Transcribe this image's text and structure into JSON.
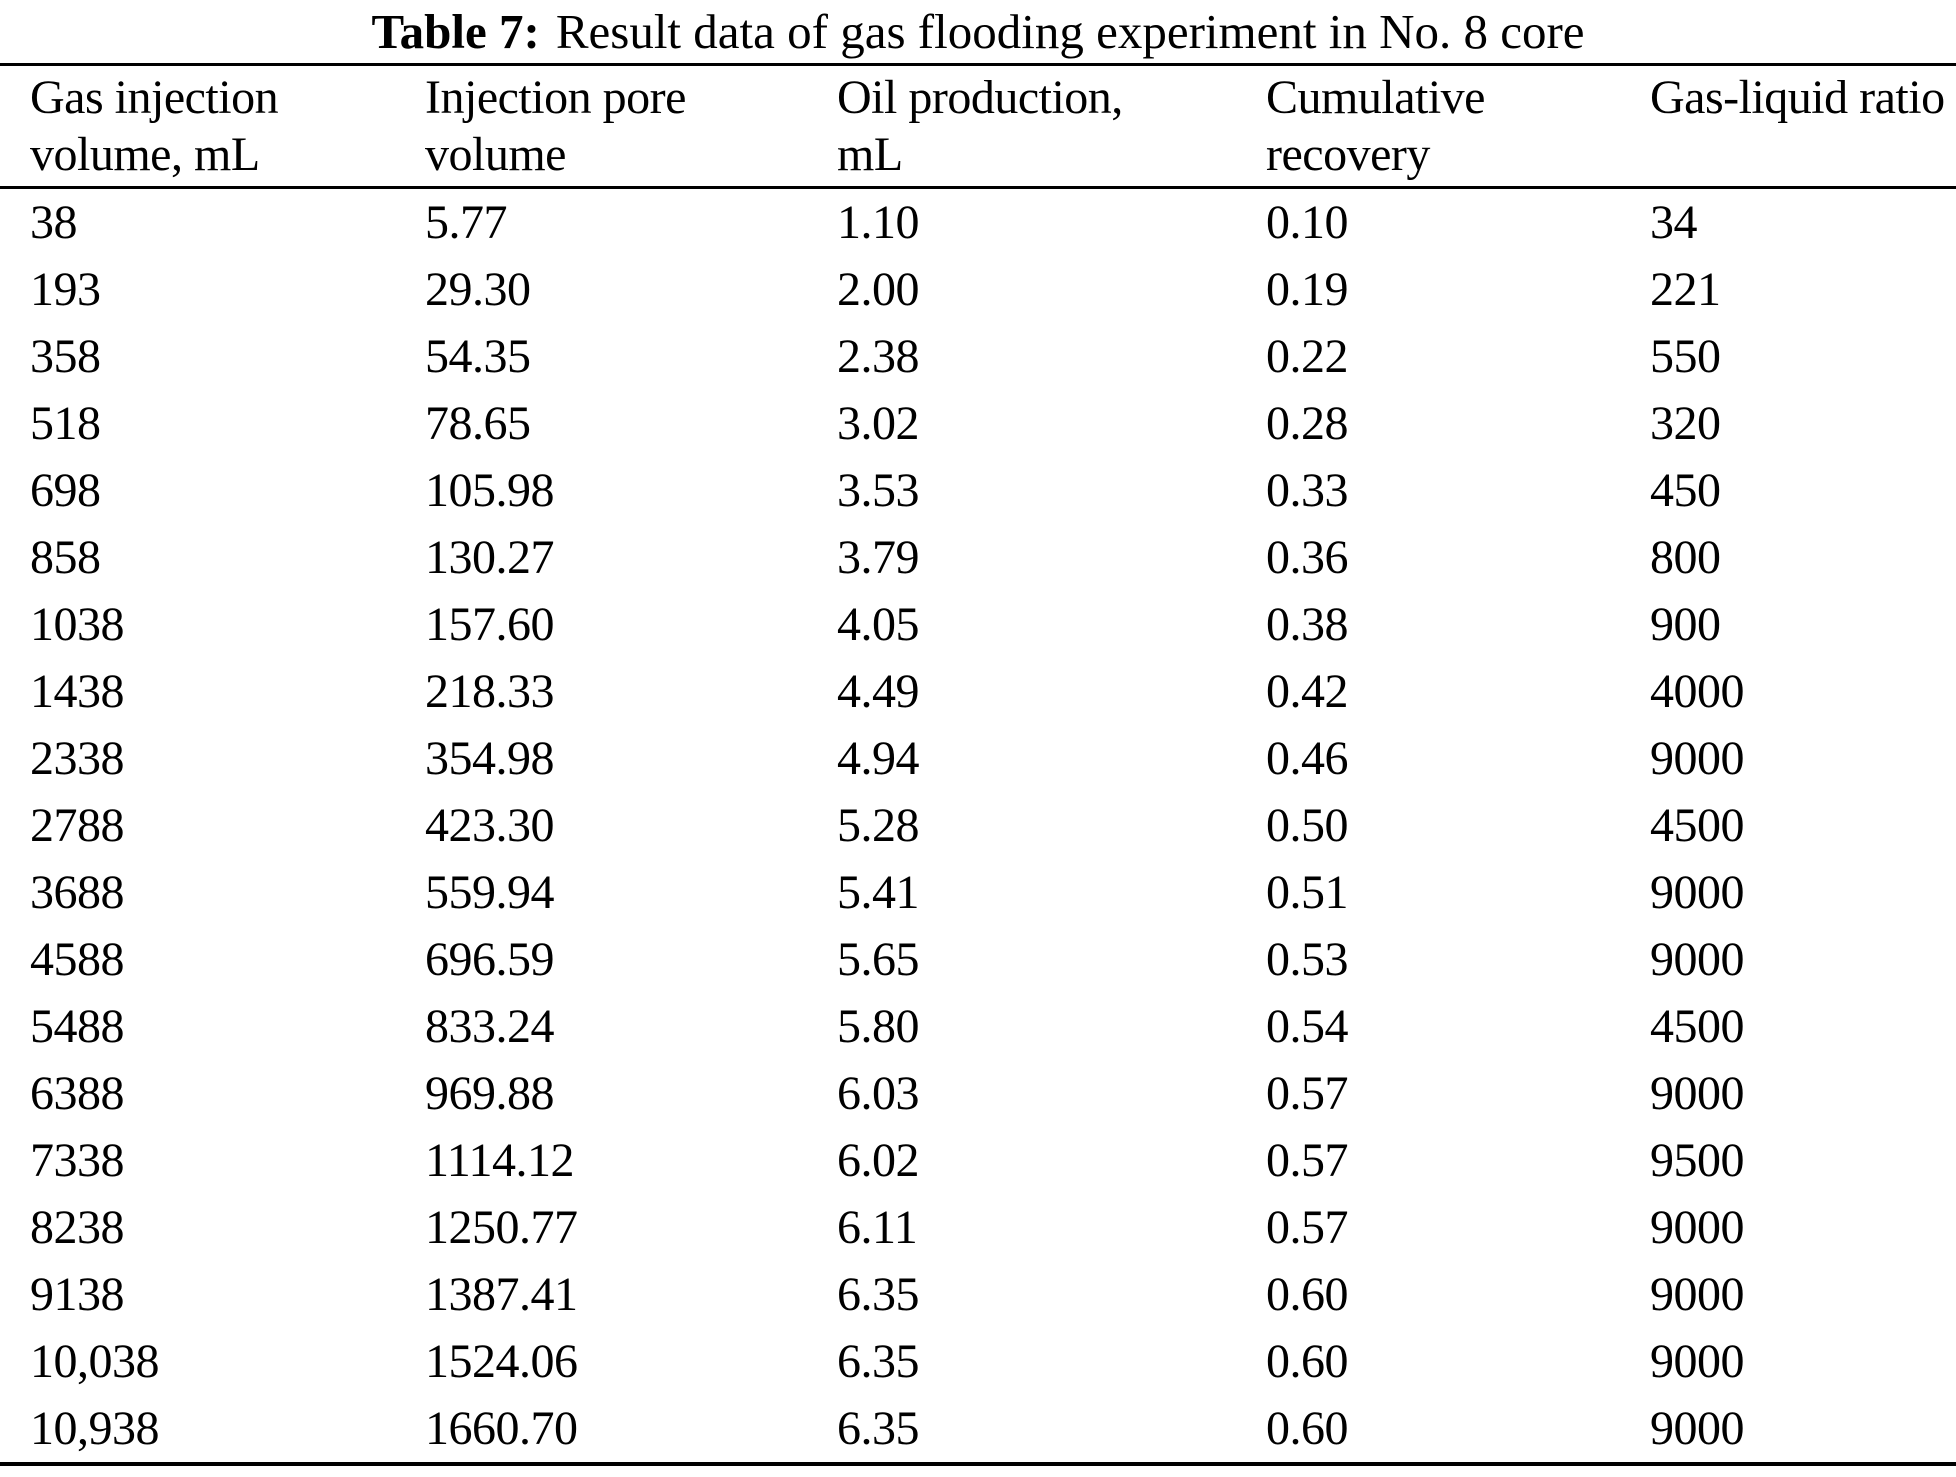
{
  "caption": {
    "label": "Table 7:",
    "text": "Result data of gas flooding experiment in No. 8 core"
  },
  "columns": [
    {
      "line1": "Gas injection",
      "line2": "volume, mL"
    },
    {
      "line1": "Injection pore",
      "line2": "volume"
    },
    {
      "line1": "Oil production,",
      "line2": "mL"
    },
    {
      "line1": "Cumulative",
      "line2": "recovery"
    },
    {
      "line1": "Gas-liquid ratio",
      "line2": ""
    }
  ],
  "rows": [
    [
      "38",
      "5.77",
      "1.10",
      "0.10",
      "34"
    ],
    [
      "193",
      "29.30",
      "2.00",
      "0.19",
      "221"
    ],
    [
      "358",
      "54.35",
      "2.38",
      "0.22",
      "550"
    ],
    [
      "518",
      "78.65",
      "3.02",
      "0.28",
      "320"
    ],
    [
      "698",
      "105.98",
      "3.53",
      "0.33",
      "450"
    ],
    [
      "858",
      "130.27",
      "3.79",
      "0.36",
      "800"
    ],
    [
      "1038",
      "157.60",
      "4.05",
      "0.38",
      "900"
    ],
    [
      "1438",
      "218.33",
      "4.49",
      "0.42",
      "4000"
    ],
    [
      "2338",
      "354.98",
      "4.94",
      "0.46",
      "9000"
    ],
    [
      "2788",
      "423.30",
      "5.28",
      "0.50",
      "4500"
    ],
    [
      "3688",
      "559.94",
      "5.41",
      "0.51",
      "9000"
    ],
    [
      "4588",
      "696.59",
      "5.65",
      "0.53",
      "9000"
    ],
    [
      "5488",
      "833.24",
      "5.80",
      "0.54",
      "4500"
    ],
    [
      "6388",
      "969.88",
      "6.03",
      "0.57",
      "9000"
    ],
    [
      "7338",
      "1114.12",
      "6.02",
      "0.57",
      "9500"
    ],
    [
      "8238",
      "1250.77",
      "6.11",
      "0.57",
      "9000"
    ],
    [
      "9138",
      "1387.41",
      "6.35",
      "0.60",
      "9000"
    ],
    [
      "10,038",
      "1524.06",
      "6.35",
      "0.60",
      "9000"
    ],
    [
      "10,938",
      "1660.70",
      "6.35",
      "0.60",
      "9000"
    ]
  ],
  "chart_data": {
    "type": "table",
    "title": "Table 7: Result data of gas flooding experiment in No. 8 core",
    "columns": [
      "Gas injection volume, mL",
      "Injection pore volume",
      "Oil production, mL",
      "Cumulative recovery",
      "Gas-liquid ratio"
    ],
    "gas_injection_volume_mL": [
      38,
      193,
      358,
      518,
      698,
      858,
      1038,
      1438,
      2338,
      2788,
      3688,
      4588,
      5488,
      6388,
      7338,
      8238,
      9138,
      10038,
      10938
    ],
    "injection_pore_volume": [
      5.77,
      29.3,
      54.35,
      78.65,
      105.98,
      130.27,
      157.6,
      218.33,
      354.98,
      423.3,
      559.94,
      696.59,
      833.24,
      969.88,
      1114.12,
      1250.77,
      1387.41,
      1524.06,
      1660.7
    ],
    "oil_production_mL": [
      1.1,
      2.0,
      2.38,
      3.02,
      3.53,
      3.79,
      4.05,
      4.49,
      4.94,
      5.28,
      5.41,
      5.65,
      5.8,
      6.03,
      6.02,
      6.11,
      6.35,
      6.35,
      6.35
    ],
    "cumulative_recovery": [
      0.1,
      0.19,
      0.22,
      0.28,
      0.33,
      0.36,
      0.38,
      0.42,
      0.46,
      0.5,
      0.51,
      0.53,
      0.54,
      0.57,
      0.57,
      0.57,
      0.6,
      0.6,
      0.6
    ],
    "gas_liquid_ratio": [
      34,
      221,
      550,
      320,
      450,
      800,
      900,
      4000,
      9000,
      4500,
      9000,
      9000,
      4500,
      9000,
      9500,
      9000,
      9000,
      9000,
      9000
    ]
  }
}
